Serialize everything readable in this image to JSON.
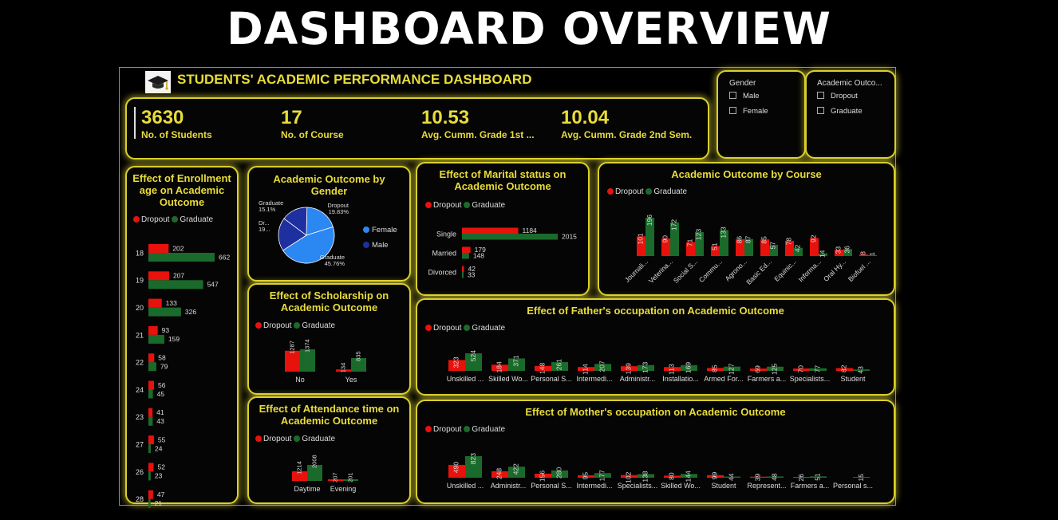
{
  "page_title": "DASHBOARD OVERVIEW",
  "dashboard_title": "STUDENTS' ACADEMIC PERFORMANCE DASHBOARD",
  "colors": {
    "accent": "#e8dc3a",
    "dropout": "#e8120c",
    "graduate": "#1a6b2b",
    "female": "#2b87f2",
    "male": "#1e2fa0"
  },
  "kpis": [
    {
      "value": "3630",
      "label": "No. of Students"
    },
    {
      "value": "17",
      "label": "No. of Course"
    },
    {
      "value": "10.53",
      "label": "Avg. Cumm. Grade 1st ..."
    },
    {
      "value": "10.04",
      "label": "Avg. Cumm. Grade 2nd Sem."
    }
  ],
  "slicers": {
    "gender": {
      "title": "Gender",
      "options": [
        "Male",
        "Female"
      ]
    },
    "outcome": {
      "title": "Academic Outco...",
      "options": [
        "Dropout",
        "Graduate"
      ]
    }
  },
  "legend": {
    "dropout": "Dropout",
    "graduate": "Graduate"
  },
  "chart_data": [
    {
      "id": "enroll",
      "type": "bar",
      "orientation": "horizontal",
      "title": "Effect of Enrollment age on Academic Outcome",
      "categories": [
        "18",
        "19",
        "20",
        "21",
        "22",
        "24",
        "23",
        "27",
        "26",
        "28"
      ],
      "series": [
        {
          "name": "Dropout",
          "values": [
            202,
            207,
            133,
            93,
            58,
            56,
            41,
            55,
            52,
            47
          ]
        },
        {
          "name": "Graduate",
          "values": [
            662,
            547,
            326,
            159,
            79,
            45,
            43,
            24,
            23,
            21
          ]
        }
      ]
    },
    {
      "id": "gender",
      "type": "pie",
      "title": "Academic Outcome by Gender",
      "legend": [
        "Female",
        "Male"
      ],
      "slices": [
        {
          "label": "Dropout",
          "value": 19.83,
          "text": "19.83%",
          "gender": "Female"
        },
        {
          "label": "Graduate",
          "value": 45.76,
          "text": "45.76%",
          "gender": "Female"
        },
        {
          "label": "Dr...",
          "value": 19.31,
          "text": "19...",
          "gender": "Male"
        },
        {
          "label": "Graduate",
          "value": 15.1,
          "text": "15.1%",
          "gender": "Male"
        }
      ]
    },
    {
      "id": "scholar",
      "type": "bar",
      "title": "Effect of Scholarship on Academic Outcome",
      "categories": [
        "No",
        "Yes"
      ],
      "series": [
        {
          "name": "Dropout",
          "values": [
            1287,
            134
          ]
        },
        {
          "name": "Graduate",
          "values": [
            1374,
            835
          ]
        }
      ]
    },
    {
      "id": "attend",
      "type": "bar",
      "title": "Effect of Attendance time on Academic Outcome",
      "categories": [
        "Daytime",
        "Evening"
      ],
      "series": [
        {
          "name": "Dropout",
          "values": [
            1214,
            207
          ]
        },
        {
          "name": "Graduate",
          "values": [
            2008,
            201
          ]
        }
      ]
    },
    {
      "id": "marital",
      "type": "bar",
      "orientation": "horizontal",
      "title": "Effect of Marital status on Academic Outcome",
      "categories": [
        "Single",
        "Married",
        "Divorced"
      ],
      "series": [
        {
          "name": "Dropout",
          "values": [
            1184,
            179,
            42
          ]
        },
        {
          "name": "Graduate",
          "values": [
            2015,
            148,
            33
          ]
        }
      ]
    },
    {
      "id": "course",
      "type": "bar",
      "title": "Academic Outcome by Course",
      "categories": [
        "Journali...",
        "Veterina...",
        "Social S...",
        "Commu...",
        "Agrono...",
        "Basic Ed...",
        "Equinic...",
        "Informa...",
        "Oral Hy...",
        "Biofuel ..."
      ],
      "series": [
        {
          "name": "Dropout",
          "values": [
            101,
            90,
            71,
            51,
            86,
            85,
            78,
            92,
            33,
            8
          ]
        },
        {
          "name": "Graduate",
          "values": [
            196,
            172,
            123,
            133,
            87,
            57,
            42,
            14,
            36,
            1
          ]
        }
      ]
    },
    {
      "id": "father",
      "type": "bar",
      "title": "Effect of Father's occupation on Academic Outcome",
      "categories": [
        "Unskilled ...",
        "Skilled Wo...",
        "Personal S...",
        "Intermedi...",
        "Administr...",
        "Installatio...",
        "Armed For...",
        "Farmers a...",
        "Specialists...",
        "Student"
      ],
      "series": [
        {
          "name": "Dropout",
          "values": [
            323,
            184,
            148,
            114,
            139,
            113,
            85,
            69,
            70,
            82
          ]
        },
        {
          "name": "Graduate",
          "values": [
            524,
            371,
            261,
            207,
            173,
            169,
            127,
            125,
            77,
            43
          ]
        }
      ]
    },
    {
      "id": "mother",
      "type": "bar",
      "title": "Effect of Mother's occupation on Academic Outcome",
      "categories": [
        "Unskilled ...",
        "Administr...",
        "Personal S...",
        "Intermedi...",
        "Specialists...",
        "Skilled Wo...",
        "Student",
        "Represent...",
        "Farmers a...",
        "Personal s..."
      ],
      "series": [
        {
          "name": "Dropout",
          "values": [
            490,
            248,
            156,
            95,
            102,
            80,
            99,
            39,
            26,
            null
          ]
        },
        {
          "name": "Graduate",
          "values": [
            823,
            422,
            280,
            177,
            138,
            144,
            44,
            48,
            51,
            15
          ]
        }
      ]
    }
  ]
}
